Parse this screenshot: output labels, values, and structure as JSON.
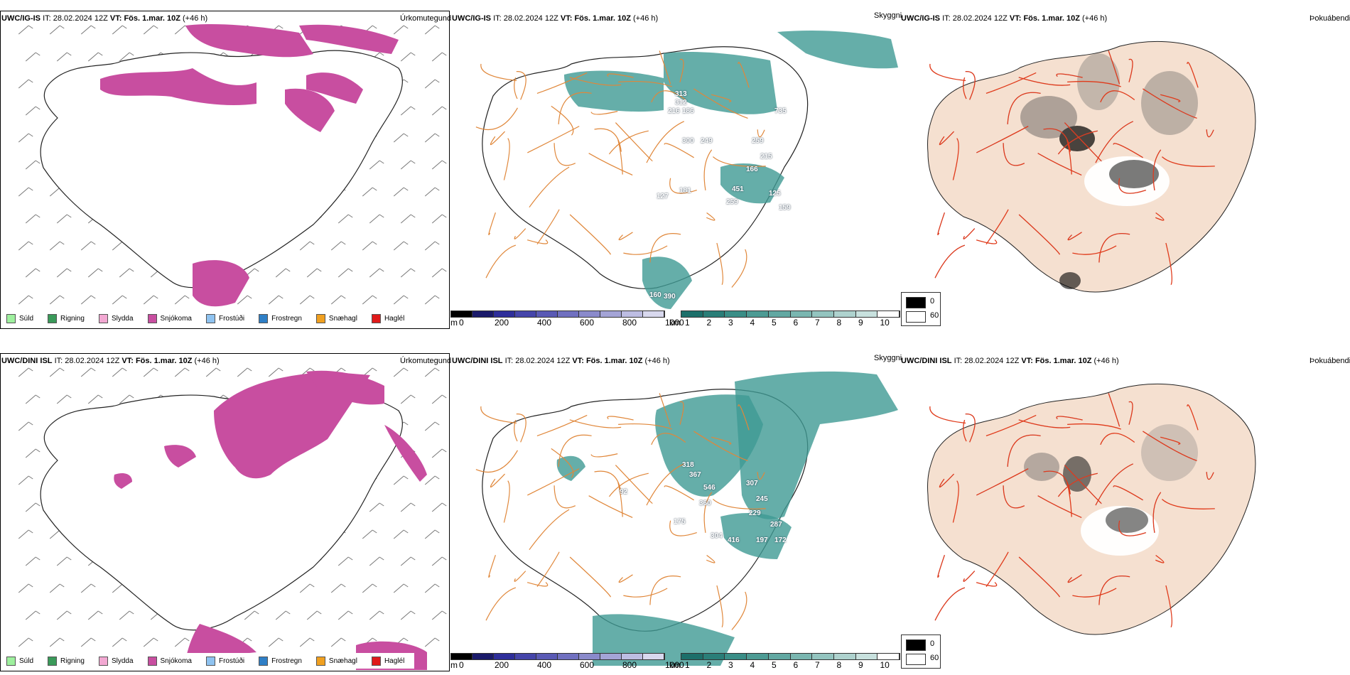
{
  "colors": {
    "snow": "#c84ea0",
    "freezing_rain": "#2f7fc6",
    "teal": "#3f9a93",
    "dark_blue": "#2e2e9a",
    "road_orange": "#e0873a",
    "road_red": "#e03a1a",
    "land_beige": "#f5e0d0",
    "river_blue": "#6f8fe8"
  },
  "top_row": {
    "panel1": {
      "model": "UWC/IG-IS",
      "it_label": "IT:",
      "it_value": "28.02.2024 12Z",
      "vt_label": "VT:",
      "vt_value": "Fös. 1.mar. 10Z",
      "lead": "(+46 h)",
      "right_label": "Úrkomutegund"
    },
    "panel2": {
      "model": "UWC/IG-IS",
      "it_label": "IT:",
      "it_value": "28.02.2024 12Z",
      "vt_label": "VT:",
      "vt_value": "Fös. 1.mar. 10Z",
      "lead": "(+46 h)",
      "right_label": "Skyggni",
      "values": [
        "313",
        "312",
        "216",
        "186",
        "300",
        "249",
        "735",
        "259",
        "215",
        "166",
        "451",
        "127",
        "181",
        "259",
        "125",
        "159",
        "160",
        "390"
      ]
    },
    "panel3": {
      "model": "UWC/IG-IS",
      "it_label": "IT:",
      "it_value": "28.02.2024 12Z",
      "vt_label": "VT:",
      "vt_value": "Fös. 1.mar. 10Z",
      "lead": "(+46 h)",
      "right_label": "Þokuábendi"
    }
  },
  "bottom_row": {
    "panel1": {
      "model": "UWC/DINI ISL",
      "it_label": "IT:",
      "it_value": "28.02.2024 12Z",
      "vt_label": "VT:",
      "vt_value": "Fös. 1.mar. 10Z",
      "lead": "(+46 h)",
      "right_label": "Úrkomutegund"
    },
    "panel2": {
      "model": "UWC/DINI ISL",
      "it_label": "IT:",
      "it_value": "28.02.2024 12Z",
      "vt_label": "VT:",
      "vt_value": "Fös. 1.mar. 10Z",
      "lead": "(+46 h)",
      "right_label": "Skyggni",
      "values": [
        "318",
        "367",
        "546",
        "360",
        "307",
        "245",
        "229",
        "92",
        "175",
        "304",
        "416",
        "197",
        "287",
        "172"
      ]
    },
    "panel3": {
      "model": "UWC/DINI ISL",
      "it_label": "IT:",
      "it_value": "28.02.2024 12Z",
      "vt_label": "VT:",
      "vt_value": "Fös. 1.mar. 10Z",
      "lead": "(+46 h)",
      "right_label": "Þokuábendi"
    }
  },
  "precip_legend": [
    {
      "label": "Súld",
      "color": "#9ef09e"
    },
    {
      "label": "Rigning",
      "color": "#3a9a5a"
    },
    {
      "label": "Slydda",
      "color": "#f2a8d2"
    },
    {
      "label": "Snjókoma",
      "color": "#c84ea0"
    },
    {
      "label": "Frostúði",
      "color": "#8fc3f0"
    },
    {
      "label": "Frostregn",
      "color": "#2f7fc6"
    },
    {
      "label": "Snæhagl",
      "color": "#f0a020"
    },
    {
      "label": "Haglél",
      "color": "#e01a1a"
    }
  ],
  "ceiling_scale": {
    "unit": "m",
    "ticks": [
      "0",
      "200",
      "400",
      "600",
      "800",
      "1000"
    ],
    "colors": [
      "#000000",
      "#1a1a6a",
      "#2e2e9a",
      "#4545aa",
      "#5a5ab5",
      "#7070c0",
      "#8a8acb",
      "#a4a4d6",
      "#bdbde2",
      "#d8d8ee"
    ]
  },
  "visibility_scale": {
    "unit": "km",
    "ticks": [
      "1",
      "2",
      "3",
      "4",
      "5",
      "6",
      "7",
      "8",
      "9",
      "10"
    ],
    "colors": [
      "#1c6f6a",
      "#2a7e78",
      "#3a8e87",
      "#4d9b94",
      "#62a8a2",
      "#7ab6b0",
      "#93c4bf",
      "#aed2ce",
      "#c8e1de",
      "#ffffff"
    ]
  },
  "fog_legend": {
    "values": [
      "0",
      "60"
    ],
    "colors": [
      "#000000",
      "#ffffff"
    ]
  }
}
